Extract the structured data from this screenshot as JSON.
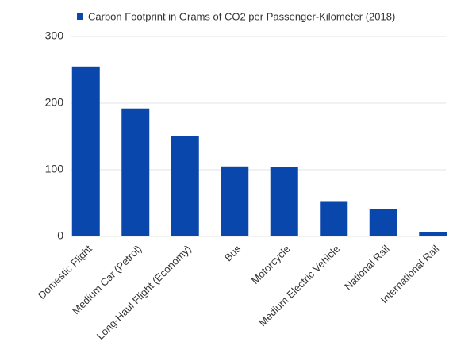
{
  "chart_data": {
    "type": "bar",
    "legend": "Carbon Footprint in Grams of CO2 per Passenger-Kilometer (2018)",
    "categories": [
      "Domestic Flight",
      "Medium Car (Petrol)",
      "Long-Haul Flight (Economy)",
      "Bus",
      "Motorcycle",
      "Medium Electric Vehicle",
      "National Rail",
      "International Rail"
    ],
    "values": [
      255,
      192,
      150,
      105,
      104,
      53,
      41,
      6
    ],
    "color": "#0a47ad",
    "ylim": [
      0,
      300
    ],
    "yticks": [
      0,
      100,
      200,
      300
    ],
    "grid": true
  }
}
